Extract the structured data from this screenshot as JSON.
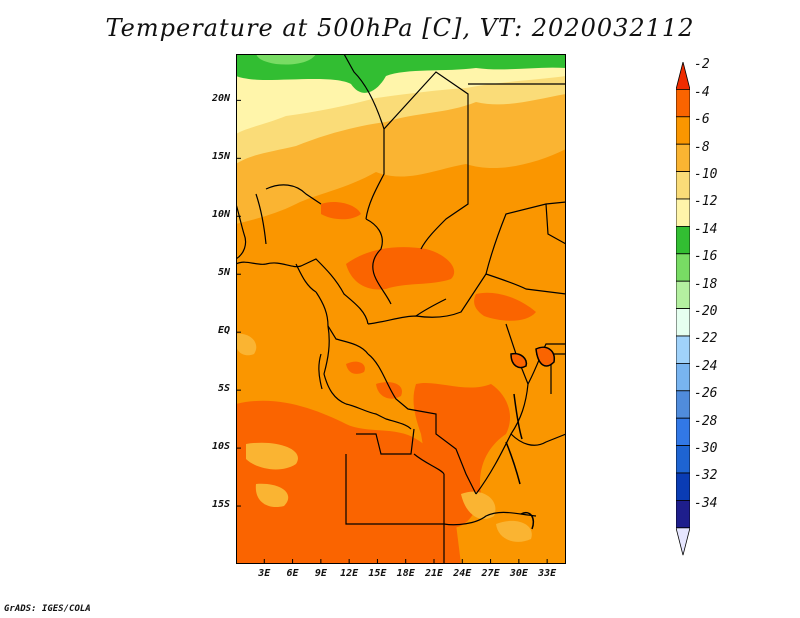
{
  "title": "Temperature at 500hPa [C], VT: 2020032112",
  "credit": "GrADS: IGES/COLA",
  "map": {
    "lon_labels": [
      "3E",
      "6E",
      "9E",
      "12E",
      "15E",
      "18E",
      "21E",
      "24E",
      "27E",
      "30E",
      "33E"
    ],
    "lat_labels": [
      "20N",
      "15N",
      "10N",
      "5N",
      "EQ",
      "5S",
      "10S",
      "15S"
    ],
    "lon_range": [
      0,
      35
    ],
    "lat_range": [
      -20,
      24
    ]
  },
  "colorbar": {
    "labels": [
      "-2",
      "-4",
      "-6",
      "-8",
      "-10",
      "-12",
      "-14",
      "-16",
      "-18",
      "-20",
      "-22",
      "-24",
      "-26",
      "-28",
      "-30",
      "-32",
      "-34"
    ],
    "colors": [
      "#ee2c00",
      "#fa6400",
      "#fa9600",
      "#fab432",
      "#fadc78",
      "#fff5aa",
      "#32be32",
      "#78dc64",
      "#b4f0a0",
      "#e6fff0",
      "#a0d2fa",
      "#78b4f0",
      "#508cdc",
      "#3278e6",
      "#1e64d2",
      "#0a3cb4",
      "#1e1e8c",
      "#e6e6ff"
    ]
  },
  "colors": {
    "temp_m4": "#fa6400",
    "temp_m6": "#fa9600",
    "temp_m8": "#fab432",
    "temp_m10": "#fadc78",
    "temp_m12": "#fff5aa",
    "temp_m14": "#32be32",
    "temp_m16": "#78dc64"
  }
}
